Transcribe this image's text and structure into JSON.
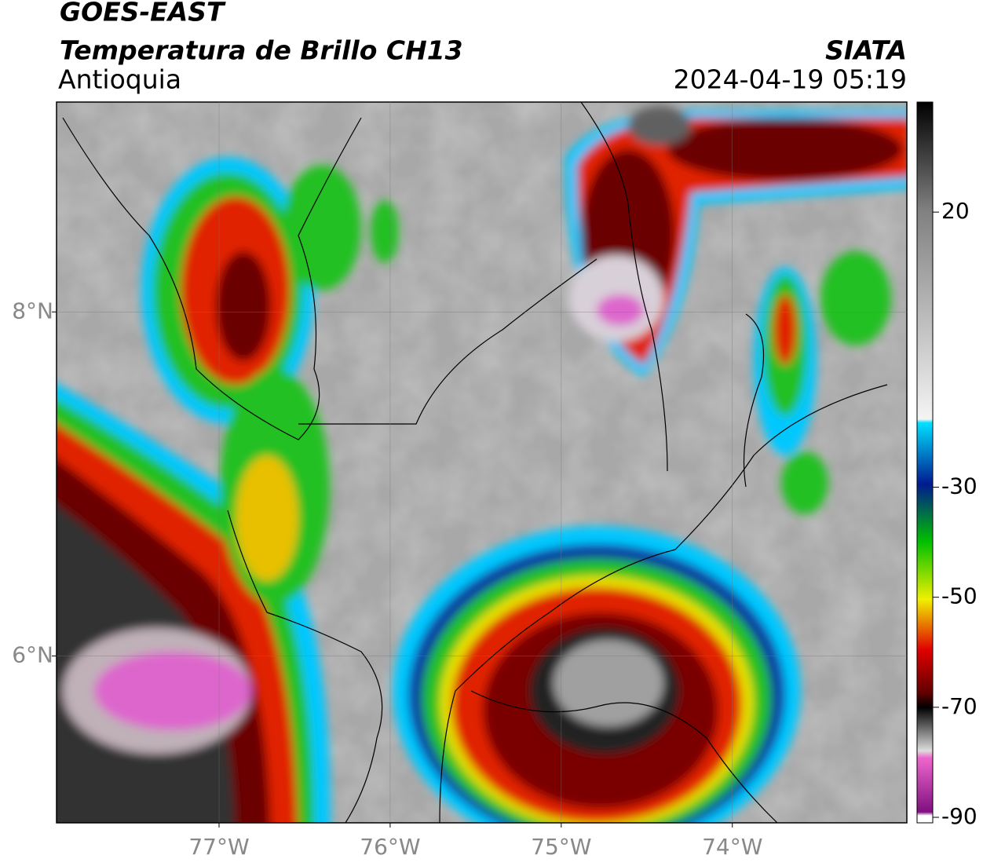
{
  "map": {
    "title": "GOES-EAST",
    "subtitle": "Temperatura de Brillo CH13",
    "region": "Antioquia",
    "source": "SIATA",
    "datetime": "2024-04-19 05:19",
    "xlim": [
      -77.95,
      -72.98
    ],
    "ylim": [
      5.03,
      9.22
    ],
    "xticks": [
      {
        "value": -77,
        "label": "77°W"
      },
      {
        "value": -76,
        "label": "76°W"
      },
      {
        "value": -75,
        "label": "75°W"
      },
      {
        "value": -74,
        "label": "74°W"
      }
    ],
    "yticks": [
      {
        "value": 8,
        "label": "8°N"
      },
      {
        "value": 6,
        "label": "6°N"
      }
    ],
    "colorbar": {
      "lim": [
        -91,
        40
      ],
      "ticks": [
        20,
        -30,
        -50,
        -70,
        -90
      ]
    }
  }
}
